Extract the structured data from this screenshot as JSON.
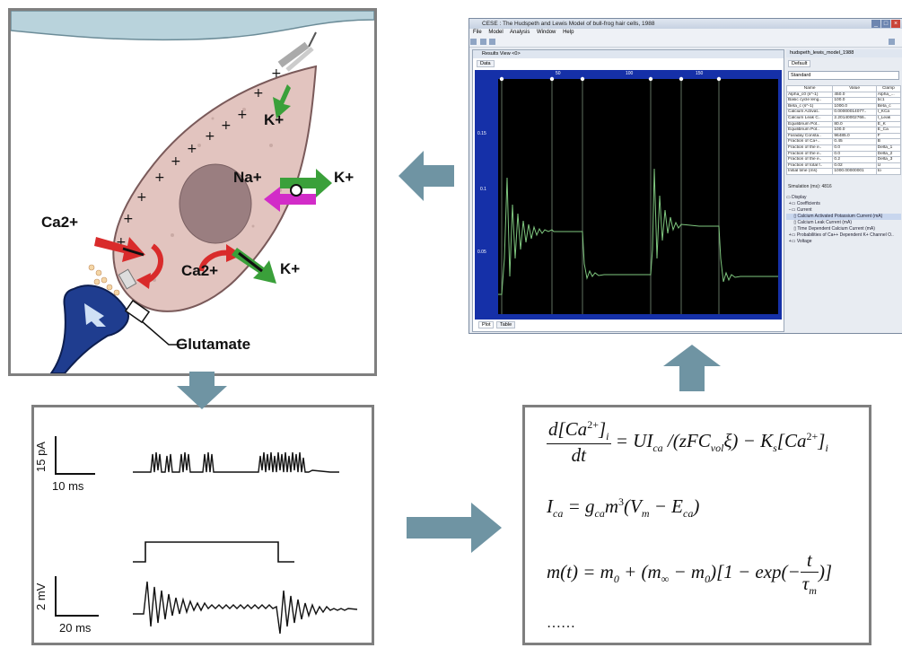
{
  "cell_diagram": {
    "ions": {
      "k_top": "K+",
      "na": "Na+",
      "k_right": "K+",
      "ca_left": "Ca2+",
      "ca_inner": "Ca2+",
      "k_bottom": "K+"
    },
    "glutamate_label": "Glutamate",
    "colors": {
      "cell_fill": "#e2c4bf",
      "nucleus": "#9a7e80",
      "k_arrow": "#3aa03a",
      "ca_arrow": "#d92b2b",
      "na_arrow": "#d22cc8",
      "terminal": "#1f3d8f"
    }
  },
  "recordings": {
    "top_scale_y": "15 pA",
    "top_scale_x": "10 ms",
    "bottom_scale_y": "2 mV",
    "bottom_scale_x": "20 ms"
  },
  "equations": {
    "eq1": {
      "num": "d[Ca",
      "num_sup": "2+",
      "num_end": "]",
      "num_sub": "i",
      "den": "dt",
      "rhs1": "= UI",
      "rhs1_sub": "ca",
      "rhs2": " /(zFC",
      "rhs2_sub": "vol",
      "rhs3": "ξ) − K",
      "rhs3_sub": "s",
      "rhs4": "[Ca",
      "rhs4_sup": "2+",
      "rhs4_end": "]",
      "rhs4_sub": "i"
    },
    "eq2": {
      "lhs": "I",
      "lhs_sub": "ca",
      "rhs_a": "= g",
      "rhs_a_sub": "ca",
      "rhs_b": "m",
      "rhs_b_sup": "3",
      "rhs_c": "(V",
      "rhs_c_sub": "m",
      "rhs_d": " − E",
      "rhs_d_sub": "ca",
      "rhs_e": ")"
    },
    "eq3": {
      "lhs": "m(t) = m",
      "lhs_sub": "0",
      "a": " + (m",
      "a_sub": "∞",
      "b": " − m",
      "b_sub": "0",
      "c": ")[1 − exp(−",
      "frac_num": "t",
      "frac_den": "τ",
      "frac_den_sub": "m",
      "d": ")]"
    },
    "ellipsis": "……"
  },
  "software_window": {
    "title": "CESE : The Hudspeth and Lewis Model of bull-frog hair cells, 1988",
    "menus": [
      "File",
      "Model",
      "Analysis",
      "Window",
      "Help"
    ],
    "results_title": "Results View <0>",
    "data_tab": "Data",
    "bottom_tabs": [
      "Plot",
      "Table"
    ],
    "x_ticks": [
      "50",
      "100",
      "150"
    ],
    "y_ticks": [
      "0.15",
      "0.1",
      "0.05"
    ],
    "model_tab": "hudspeth_lewis_model_1988",
    "default_tab": "Default",
    "standard_select": "Standard",
    "prop_headers": [
      "Name",
      "Value",
      "Clamp"
    ],
    "props": [
      [
        "Alpha_c0 (s^-1)",
        "450.0",
        "Alpha_..."
      ],
      [
        "Basic cycle leng..",
        "100.0",
        "bc1"
      ],
      [
        "Beta_c (s^-1)",
        "1000.0",
        "Beta_c"
      ],
      [
        "Calcium Activat..",
        "0.00000014077..",
        "I_KCa"
      ],
      [
        "Calcium Leak C..",
        "2.20140002766..",
        "I_Leak"
      ],
      [
        "Equilibrium Pot..",
        "80.0",
        "E_K"
      ],
      [
        "Equilibrium Pot..",
        "100.0",
        "E_Ca"
      ],
      [
        "Faraday Consta..",
        "96485.0",
        "F"
      ],
      [
        "Fraction of Ca+..",
        "0.45",
        "B"
      ],
      [
        "Fraction of the e..",
        "0.0",
        "Delta_1"
      ],
      [
        "Fraction of the e..",
        "0.0",
        "Delta_2"
      ],
      [
        "Fraction of the e..",
        "0.2",
        "Delta_3"
      ],
      [
        "Fraction of total f..",
        "0.02",
        "U"
      ],
      [
        "Initial time (ms)",
        "1000.00000001",
        "to"
      ]
    ],
    "simulation_label": "Simulation (ms): 4816",
    "tree": [
      "Display",
      "Coefficients",
      "Current",
      "Calcium Activated Potassium Current (mA)",
      "Calcium Leak Current (mA)",
      "Time Dependent Calcium Current (mA)",
      "Probabilities of Ca++ Dependent K+ Channel O..",
      "Voltage"
    ],
    "colors": {
      "plot_bg": "#000000",
      "trace": "#7fc77f",
      "axis_bg": "#1530a8"
    }
  }
}
